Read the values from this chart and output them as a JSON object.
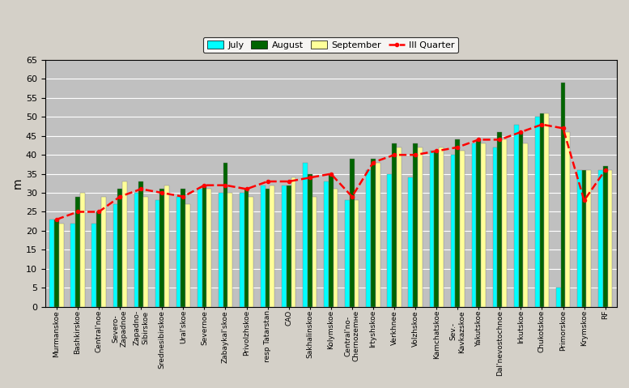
{
  "categories": [
    "Murmanskoe",
    "Bashkirskoe",
    "Central'noe",
    "Severo-\nZapadnoе",
    "Zapadno-\nSibirskoe",
    "Srednesibirskoe",
    "Ural'skoe",
    "Severnoe",
    "Zabaykal'skoe",
    "Privolzhskoe",
    "resp Tatarstan",
    "CAO",
    "Sakhalinskoe",
    "Kolymskoe",
    "Central'no-\nChernozemнe",
    "Irtyshskoe",
    "Verkhneе",
    "Volzhskoe",
    "Kamchatskoe",
    "Sev.-\nKavkazskoe",
    "Yakutskoe",
    "Dal'nevostochnoe",
    "Irkutskoe",
    "Chukotskoe",
    "Primorskoe",
    "Krymskoe",
    "RF"
  ],
  "july": [
    23,
    22,
    22,
    27,
    30,
    28,
    29,
    31,
    30,
    30,
    32,
    32,
    38,
    33,
    28,
    36,
    35,
    34,
    41,
    40,
    43,
    42,
    48,
    50,
    5,
    36,
    36
  ],
  "august": [
    23,
    29,
    25,
    31,
    33,
    31,
    31,
    32,
    38,
    31,
    31,
    32,
    35,
    35,
    39,
    39,
    43,
    43,
    41,
    44,
    44,
    46,
    46,
    51,
    59,
    36,
    37
  ],
  "september": [
    22,
    30,
    29,
    33,
    29,
    32,
    27,
    31,
    30,
    29,
    32,
    34,
    29,
    31,
    28,
    38,
    42,
    42,
    42,
    41,
    43,
    44,
    43,
    51,
    46,
    36,
    36
  ],
  "iii_quarter": [
    23,
    25,
    25,
    29,
    31,
    30,
    29,
    32,
    32,
    31,
    33,
    33,
    34,
    35,
    29,
    38,
    40,
    40,
    41,
    42,
    44,
    44,
    46,
    48,
    47,
    28,
    36
  ],
  "color_july": "#00FFFF",
  "color_august": "#006400",
  "color_september": "#FFFF99",
  "color_iii_quarter": "#FF0000",
  "bg_color": "#C0C0C0",
  "fig_bg": "#D4D0C8",
  "ylabel": "m",
  "ylim": [
    0,
    65
  ],
  "yticks": [
    0,
    5,
    10,
    15,
    20,
    25,
    30,
    35,
    40,
    45,
    50,
    55,
    60,
    65
  ],
  "bar_width": 0.22
}
